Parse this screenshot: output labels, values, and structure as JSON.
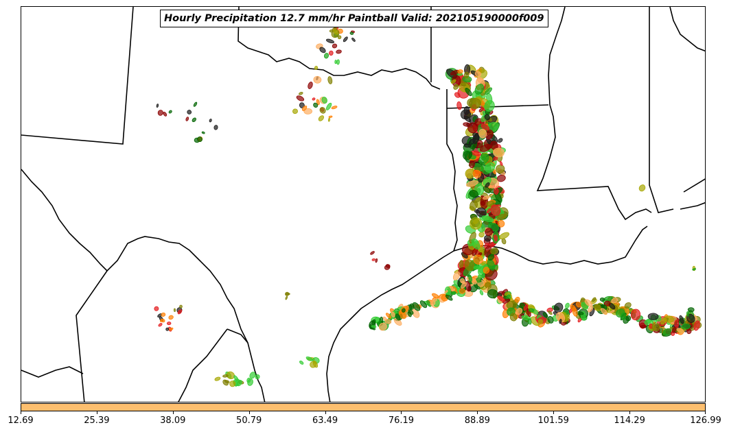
{
  "title": "Hourly Precipitation 12.7 mm/hr Paintball Valid: 202105190000f009",
  "colorbar": {
    "color": "#fdbf6f",
    "ticks": [
      "12.69",
      "25.39",
      "38.09",
      "50.79",
      "63.49",
      "76.19",
      "88.89",
      "101.59",
      "114.29",
      "126.99"
    ]
  },
  "paintball_colors": [
    "#1a1a1a",
    "#8b0000",
    "#e41a1c",
    "#ff7f00",
    "#fdae61",
    "#7f7f00",
    "#a6a600",
    "#006400",
    "#1aa31a",
    "#33cc33"
  ]
}
